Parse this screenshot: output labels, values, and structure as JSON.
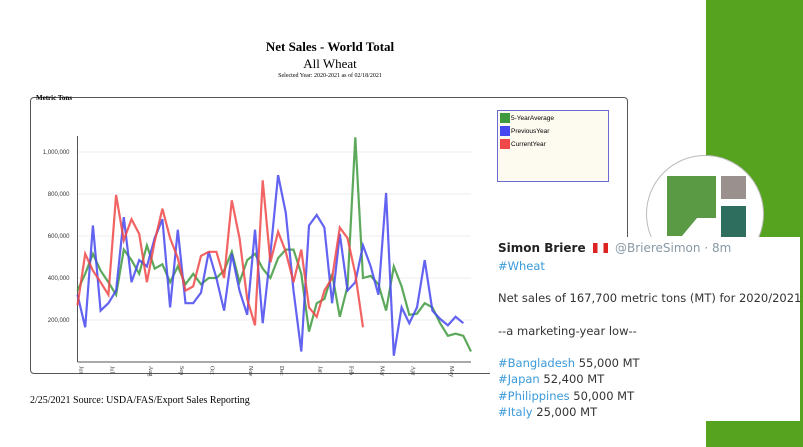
{
  "header": {
    "title": "Net Sales - World Total",
    "subtitle": "All Wheat",
    "selected": "Selected Year: 2020-2021 as of 02/18/2021"
  },
  "source": "2/25/2021 Source: USDA/FAS/Export Sales Reporting",
  "chart_data": {
    "type": "line",
    "ylabel": "Metric Tons",
    "ylim": [
      0,
      1100000
    ],
    "yticks": [
      200000,
      400000,
      600000,
      800000,
      1000000
    ],
    "ytick_labels": [
      "200,000",
      "400,000",
      "600,000",
      "800,000",
      "1,000,000"
    ],
    "xticks": [
      {
        "label": "Jun",
        "week": 0
      },
      {
        "label": "Jul",
        "week": 4
      },
      {
        "label": "Aug",
        "week": 9
      },
      {
        "label": "Sep",
        "week": 13
      },
      {
        "label": "Oct",
        "week": 17
      },
      {
        "label": "Nov",
        "week": 22
      },
      {
        "label": "Dec",
        "week": 26
      },
      {
        "label": "Jan",
        "week": 31
      },
      {
        "label": "Feb",
        "week": 35
      },
      {
        "label": "Mar",
        "week": 39
      },
      {
        "label": "Apr",
        "week": 43
      },
      {
        "label": "May",
        "week": 48
      }
    ],
    "legend_position": "right",
    "series": [
      {
        "name": "5-YearAverage",
        "color": "#3f9a3f",
        "values": [
          340000,
          420000,
          515000,
          435000,
          380000,
          320000,
          535000,
          485000,
          420000,
          555000,
          445000,
          465000,
          380000,
          455000,
          370000,
          420000,
          370000,
          400000,
          400000,
          435000,
          525000,
          380000,
          485000,
          515000,
          445000,
          400000,
          495000,
          535000,
          535000,
          420000,
          145000,
          280000,
          300000,
          420000,
          215000,
          360000,
          1070000,
          400000,
          410000,
          370000,
          245000,
          455000,
          360000,
          225000,
          230000,
          280000,
          260000,
          185000,
          125000,
          135000,
          125000,
          50000
        ]
      },
      {
        "name": "PreviousYear",
        "color": "#4848f0",
        "values": [
          320000,
          165000,
          650000,
          245000,
          280000,
          340000,
          690000,
          380000,
          485000,
          455000,
          590000,
          680000,
          260000,
          630000,
          280000,
          280000,
          330000,
          525000,
          400000,
          245000,
          515000,
          340000,
          225000,
          630000,
          185000,
          515000,
          890000,
          710000,
          340000,
          50000,
          650000,
          700000,
          640000,
          280000,
          610000,
          340000,
          380000,
          555000,
          455000,
          320000,
          805000,
          30000,
          260000,
          185000,
          260000,
          485000,
          245000,
          205000,
          175000,
          215000,
          185000
        ]
      },
      {
        "name": "CurrentYear",
        "color": "#f04848",
        "values": [
          270000,
          515000,
          435000,
          380000,
          320000,
          795000,
          580000,
          680000,
          610000,
          380000,
          575000,
          730000,
          590000,
          495000,
          340000,
          360000,
          505000,
          525000,
          525000,
          400000,
          770000,
          590000,
          300000,
          175000,
          865000,
          475000,
          620000,
          525000,
          380000,
          535000,
          260000,
          215000,
          340000,
          400000,
          640000,
          590000,
          420000,
          165000
        ]
      }
    ]
  },
  "tweet": {
    "name": "Simon Briere",
    "flag": "🇨🇦",
    "handle": "@BriereSimon · 8m",
    "hashtag": "#Wheat",
    "line1": "Net sales of 167,700 metric tons (MT) for 2020/2021",
    "line2": "--a marketing-year low--",
    "items": [
      {
        "tag": "#Bangladesh",
        "value": "55,000 MT"
      },
      {
        "tag": "#Japan",
        "value": "52,400 MT"
      },
      {
        "tag": "#Philippines",
        "value": "50,000 MT"
      },
      {
        "tag": "#Italy",
        "value": "25,000 MT"
      }
    ]
  }
}
